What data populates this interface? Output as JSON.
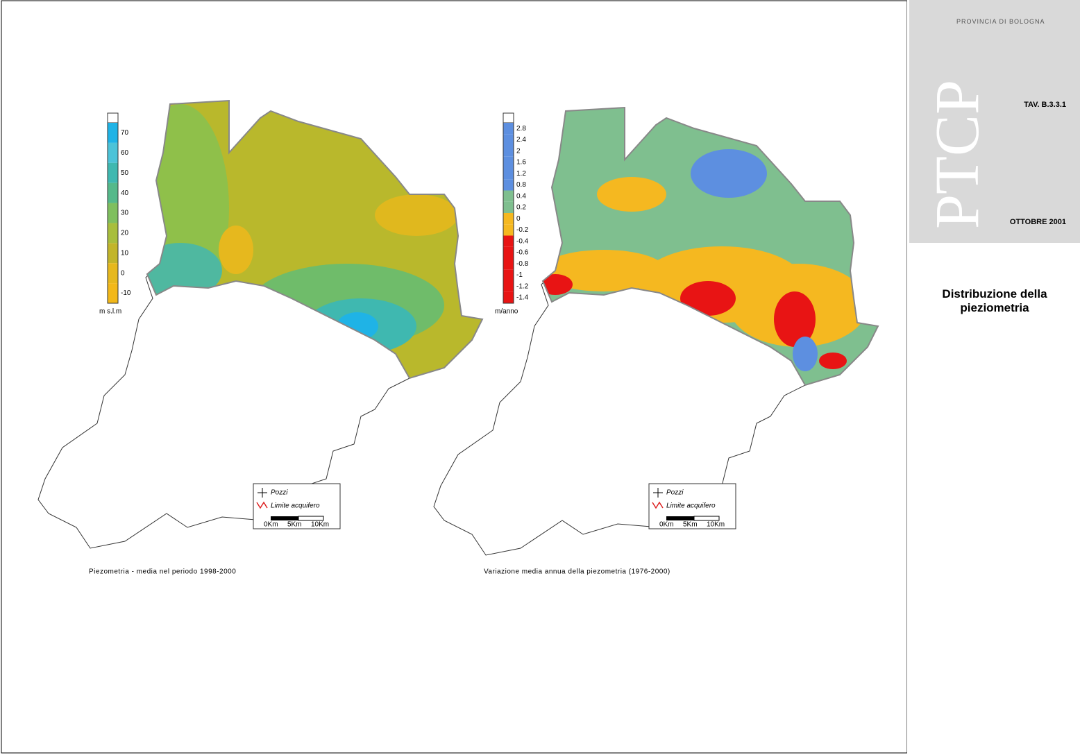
{
  "header": {
    "institution": "PROVINCIA DI BOLOGNA",
    "logo": "PTCP",
    "sheet": "TAV. B.3.3.1",
    "date": "OTTOBRE 2001",
    "title": "Distribuzione della pieziometria"
  },
  "maps": [
    {
      "caption": "Piezometria - media nel periodo 1998-2000",
      "colorbar": {
        "unit": "m s.l.m",
        "ticks": [
          70,
          60,
          50,
          40,
          30,
          20,
          10,
          0,
          -10
        ],
        "colors": [
          "#1fb3e6",
          "#4cc3d8",
          "#3fb8b0",
          "#55b98a",
          "#7fbf5e",
          "#a8be3c",
          "#c2b52a",
          "#e6b81e",
          "#f2b81a"
        ]
      },
      "legend": {
        "wells": "Pozzi",
        "boundary": "Limite acquifero",
        "scale": [
          "0Km",
          "5Km",
          "10Km"
        ]
      }
    },
    {
      "caption": "Variazione media annua della piezometria (1976-2000)",
      "colorbar": {
        "unit": "m/anno",
        "ticks": [
          2.8,
          2.4,
          2,
          1.6,
          1.2,
          0.8,
          0.4,
          0.2,
          0,
          -0.2,
          -0.4,
          -0.6,
          -0.8,
          -1,
          -1.2,
          -1.4
        ],
        "colors": [
          "#5d8fe0",
          "#5d8fe0",
          "#5d8fe0",
          "#5d8fe0",
          "#5d8fe0",
          "#5d8fe0",
          "#7fbf8f",
          "#7fbf8f",
          "#f5b820",
          "#f5b820",
          "#e81414",
          "#e81414",
          "#e81414",
          "#e81414",
          "#e81414",
          "#e81414"
        ]
      },
      "legend": {
        "wells": "Pozzi",
        "boundary": "Limite acquifero",
        "scale": [
          "0Km",
          "5Km",
          "10Km"
        ]
      }
    }
  ]
}
